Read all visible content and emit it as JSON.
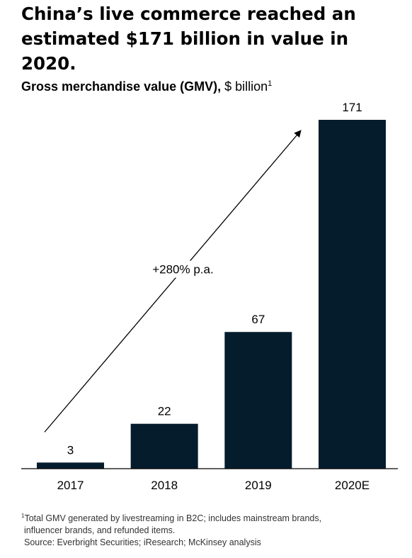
{
  "title": "China’s live commerce reached an estimated $171 billion in value in 2020.",
  "subtitle": {
    "metric": "Gross merchandise value (GMV),",
    "unit": " $ billion",
    "footnote_mark": "1"
  },
  "colors": {
    "bar": "#051c2c",
    "text": "#000000",
    "axis": "#000000"
  },
  "chart_data": {
    "type": "bar",
    "title": "Gross merchandise value (GMV), $ billion",
    "categories": [
      "2017",
      "2018",
      "2019",
      "2020E"
    ],
    "values": [
      3,
      22,
      67,
      171
    ],
    "data_labels": [
      "3",
      "22",
      "67",
      "171"
    ],
    "ylim": [
      0,
      171
    ],
    "grid": false,
    "annotations": [
      {
        "text": "+280% p.a.",
        "type": "arrow",
        "from_category": "2017",
        "to_category": "2020E"
      }
    ]
  },
  "footnotes": {
    "mark": "1",
    "note_line1": "Total GMV generated by livestreaming in B2C; includes mainstream brands,",
    "note_line2": "influencer brands, and refunded items.",
    "source": "Source: Everbright Securities; iResearch; McKinsey analysis"
  }
}
